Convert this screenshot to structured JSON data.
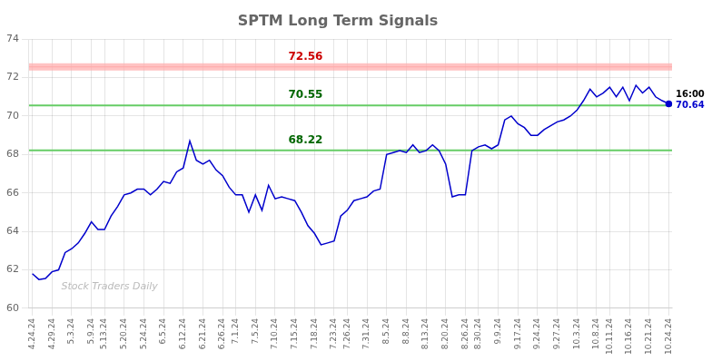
{
  "chart_data": {
    "type": "line",
    "title": "SPTM Long Term Signals",
    "categories": [
      "4.24.24",
      null,
      null,
      "4.29.24",
      null,
      null,
      "5.3.24",
      null,
      null,
      "5.9.24",
      null,
      "5.13.24",
      null,
      null,
      "5.20.24",
      null,
      null,
      "5.24.24",
      null,
      null,
      "6.5.24",
      null,
      null,
      "6.12.24",
      null,
      null,
      "6.21.24",
      null,
      null,
      "6.26.24",
      null,
      "7.1.24",
      null,
      null,
      "7.5.24",
      null,
      null,
      "7.10.24",
      null,
      null,
      "7.15.24",
      null,
      null,
      "7.18.24",
      null,
      null,
      "7.23.24",
      null,
      "7.26.24",
      null,
      null,
      "7.31.24",
      null,
      null,
      "8.5.24",
      null,
      null,
      "8.8.24",
      null,
      null,
      "8.13.24",
      null,
      null,
      "8.20.24",
      null,
      null,
      "8.26.24",
      null,
      "8.30.24",
      null,
      null,
      "9.9.24",
      null,
      null,
      "9.17.24",
      null,
      null,
      "9.24.24",
      null,
      null,
      "9.27.24",
      null,
      null,
      "10.3.24",
      null,
      null,
      "10.8.24",
      null,
      "10.11.24",
      null,
      null,
      "10.16.24",
      null,
      null,
      "10.21.24",
      null,
      null,
      "10.24.24"
    ],
    "values": [
      61.8,
      61.5,
      61.55,
      61.9,
      62.0,
      62.9,
      63.1,
      63.4,
      63.9,
      64.5,
      64.1,
      64.1,
      64.8,
      65.3,
      65.9,
      66.0,
      66.2,
      66.2,
      65.9,
      66.2,
      66.6,
      66.5,
      67.1,
      67.3,
      68.7,
      67.7,
      67.5,
      67.7,
      67.2,
      66.9,
      66.3,
      65.9,
      65.9,
      65.0,
      65.9,
      65.1,
      66.4,
      65.7,
      65.8,
      65.7,
      65.6,
      65.0,
      64.3,
      63.9,
      63.3,
      63.4,
      63.5,
      64.8,
      65.1,
      65.6,
      65.7,
      65.8,
      66.1,
      66.2,
      68.0,
      68.1,
      68.2,
      68.1,
      68.5,
      68.1,
      68.2,
      68.5,
      68.2,
      67.5,
      65.8,
      65.9,
      65.9,
      68.2,
      68.4,
      68.5,
      68.3,
      68.5,
      69.8,
      70.0,
      69.6,
      69.4,
      69.0,
      69.0,
      69.3,
      69.5,
      69.7,
      69.8,
      70.0,
      70.3,
      70.8,
      71.4,
      71.0,
      71.2,
      71.5,
      71.0,
      71.5,
      70.8,
      71.6,
      71.2,
      71.5,
      71.0,
      70.8,
      70.64
    ],
    "color": "#0000cc",
    "ylim": [
      60,
      74
    ],
    "yticks": [
      60,
      62,
      64,
      66,
      68,
      70,
      72,
      74
    ],
    "grid": true,
    "hlines": [
      {
        "value": 72.56,
        "color": "#ffaaaa",
        "label_color": "#cc0000"
      },
      {
        "value": 70.55,
        "color": "#66cc66",
        "label_color": "#006600"
      },
      {
        "value": 68.22,
        "color": "#66cc66",
        "label_color": "#006600"
      }
    ],
    "annotations": [
      {
        "text": "Stock Traders Daily",
        "color": "#bbbbbb"
      },
      {
        "text": "16:00",
        "y": 70.64
      },
      {
        "text": "70.64",
        "y": 70.64,
        "color": "#0000cc"
      }
    ]
  }
}
